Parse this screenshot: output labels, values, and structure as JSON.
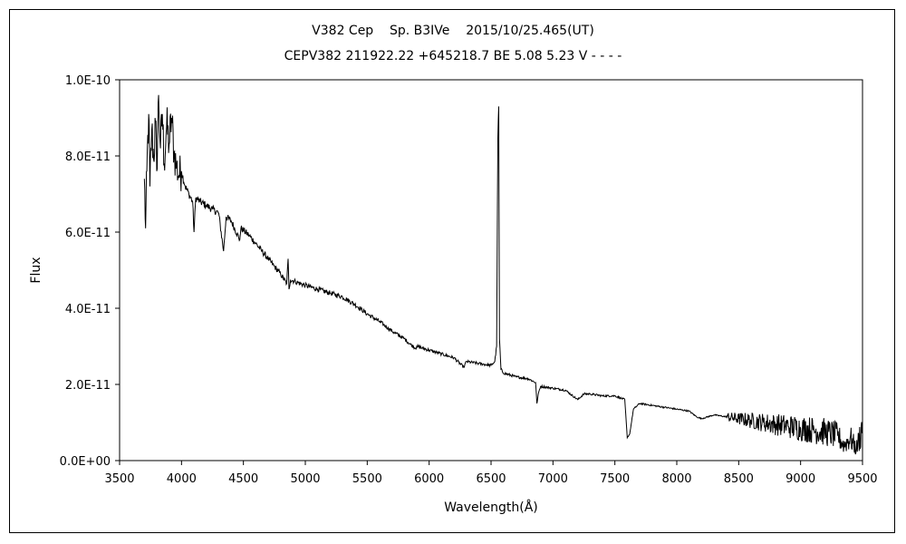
{
  "chart_data": {
    "type": "line",
    "title": "V382 Cep    Sp. B3IVe    2015/10/25.465(UT)",
    "subtitle": "CEPV382 211922.22 +645218.7 BE 5.08 5.23 V - - - -",
    "xlabel": "Wavelength(Å)",
    "ylabel": "Flux",
    "xlim": [
      3500,
      9500
    ],
    "ylim": [
      0,
      1e-10
    ],
    "x_ticks": [
      3500,
      4000,
      4500,
      5000,
      5500,
      6000,
      6500,
      7000,
      7500,
      8000,
      8500,
      9000,
      9500
    ],
    "x_tick_labels": [
      "3500",
      "4000",
      "4500",
      "5000",
      "5500",
      "6000",
      "6500",
      "7000",
      "7500",
      "8000",
      "8500",
      "9000",
      "9500"
    ],
    "y_ticks": [
      0,
      2e-11,
      4e-11,
      6e-11,
      8e-11,
      1e-10
    ],
    "y_tick_labels": [
      "0.0E+00",
      "2.0E-11",
      "4.0E-11",
      "6.0E-11",
      "8.0E-11",
      "1.0E-10"
    ],
    "grid": false,
    "line_color": "#000000",
    "series": [
      {
        "points": [
          [
            3700,
            7.4e-11
          ],
          [
            3710,
            6.1e-11
          ],
          [
            3720,
            7.6e-11
          ],
          [
            3735,
            9.1e-11
          ],
          [
            3745,
            7.2e-11
          ],
          [
            3760,
            8.7e-11
          ],
          [
            3775,
            7.9e-11
          ],
          [
            3790,
            8.9e-11
          ],
          [
            3800,
            7.6e-11
          ],
          [
            3815,
            9.6e-11
          ],
          [
            3830,
            8.2e-11
          ],
          [
            3845,
            9.1e-11
          ],
          [
            3860,
            7.8e-11
          ],
          [
            3880,
            8.8e-11
          ],
          [
            3900,
            8.3e-11
          ],
          [
            3920,
            9e-11
          ],
          [
            3940,
            8.1e-11
          ],
          [
            3960,
            7.7e-11
          ],
          [
            3980,
            7.5e-11
          ],
          [
            4000,
            7.6e-11
          ],
          [
            4030,
            7.2e-11
          ],
          [
            4060,
            7e-11
          ],
          [
            4090,
            6.8e-11
          ],
          [
            4101,
            6e-11
          ],
          [
            4115,
            6.9e-11
          ],
          [
            4150,
            6.8e-11
          ],
          [
            4200,
            6.7e-11
          ],
          [
            4250,
            6.6e-11
          ],
          [
            4300,
            6.5e-11
          ],
          [
            4340,
            5.5e-11
          ],
          [
            4360,
            6.4e-11
          ],
          [
            4400,
            6.3e-11
          ],
          [
            4471,
            5.8e-11
          ],
          [
            4480,
            6.1e-11
          ],
          [
            4500,
            6.05e-11
          ],
          [
            4550,
            5.9e-11
          ],
          [
            4600,
            5.7e-11
          ],
          [
            4650,
            5.5e-11
          ],
          [
            4700,
            5.3e-11
          ],
          [
            4750,
            5.1e-11
          ],
          [
            4800,
            4.9e-11
          ],
          [
            4850,
            4.65e-11
          ],
          [
            4861,
            5.3e-11
          ],
          [
            4868,
            4.5e-11
          ],
          [
            4880,
            4.75e-11
          ],
          [
            4920,
            4.7e-11
          ],
          [
            5000,
            4.6e-11
          ],
          [
            5100,
            4.5e-11
          ],
          [
            5200,
            4.4e-11
          ],
          [
            5300,
            4.3e-11
          ],
          [
            5400,
            4.1e-11
          ],
          [
            5500,
            3.85e-11
          ],
          [
            5600,
            3.65e-11
          ],
          [
            5700,
            3.4e-11
          ],
          [
            5800,
            3.2e-11
          ],
          [
            5850,
            3.05e-11
          ],
          [
            5890,
            2.95e-11
          ],
          [
            5900,
            3e-11
          ],
          [
            6000,
            2.9e-11
          ],
          [
            6100,
            2.8e-11
          ],
          [
            6200,
            2.7e-11
          ],
          [
            6280,
            2.45e-11
          ],
          [
            6300,
            2.6e-11
          ],
          [
            6400,
            2.55e-11
          ],
          [
            6500,
            2.5e-11
          ],
          [
            6530,
            2.6e-11
          ],
          [
            6545,
            3e-11
          ],
          [
            6555,
            8.5e-11
          ],
          [
            6562,
            9.3e-11
          ],
          [
            6568,
            3.2e-11
          ],
          [
            6580,
            2.4e-11
          ],
          [
            6600,
            2.3e-11
          ],
          [
            6700,
            2.2e-11
          ],
          [
            6800,
            2.15e-11
          ],
          [
            6860,
            2.05e-11
          ],
          [
            6870,
            1.5e-11
          ],
          [
            6885,
            1.8e-11
          ],
          [
            6900,
            1.95e-11
          ],
          [
            7000,
            1.9e-11
          ],
          [
            7100,
            1.85e-11
          ],
          [
            7200,
            1.6e-11
          ],
          [
            7250,
            1.75e-11
          ],
          [
            7300,
            1.75e-11
          ],
          [
            7400,
            1.7e-11
          ],
          [
            7500,
            1.7e-11
          ],
          [
            7580,
            1.6e-11
          ],
          [
            7600,
            6e-12
          ],
          [
            7620,
            7e-12
          ],
          [
            7650,
            1.35e-11
          ],
          [
            7700,
            1.5e-11
          ],
          [
            7800,
            1.45e-11
          ],
          [
            7900,
            1.4e-11
          ],
          [
            8000,
            1.35e-11
          ],
          [
            8100,
            1.3e-11
          ],
          [
            8160,
            1.15e-11
          ],
          [
            8200,
            1.1e-11
          ],
          [
            8300,
            1.2e-11
          ],
          [
            8400,
            1.15e-11
          ],
          [
            8500,
            1.1e-11
          ],
          [
            8600,
            1.05e-11
          ],
          [
            8700,
            1e-11
          ],
          [
            8800,
            9.5e-12
          ],
          [
            8900,
            9e-12
          ],
          [
            9000,
            8.5e-12
          ],
          [
            9100,
            8e-12
          ],
          [
            9200,
            7.5e-12
          ],
          [
            9300,
            6.5e-12
          ],
          [
            9350,
            4e-12
          ],
          [
            9400,
            6e-12
          ],
          [
            9450,
            3e-12
          ],
          [
            9500,
            9e-12
          ]
        ]
      }
    ]
  }
}
